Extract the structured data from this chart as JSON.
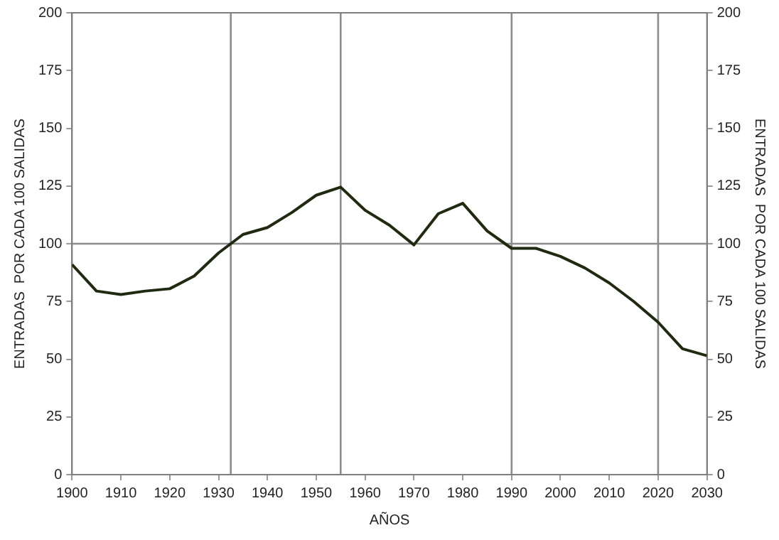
{
  "chart_data": {
    "type": "line",
    "xlabel": "AÑOS",
    "ylabel": "ENTRADAS  POR CADA 100 SALIDAS",
    "y2label": "ENTRADAS  POR CADA 100 SALIDAS",
    "x": [
      1900,
      1905,
      1910,
      1915,
      1920,
      1925,
      1930,
      1935,
      1940,
      1945,
      1950,
      1955,
      1960,
      1965,
      1970,
      1975,
      1980,
      1985,
      1990,
      1995,
      2000,
      2005,
      2010,
      2015,
      2020,
      2025,
      2030
    ],
    "series": [
      {
        "color": "#1f2a10",
        "values": [
          91,
          79.5,
          78,
          79.5,
          80.5,
          86,
          96,
          104,
          107,
          113.5,
          121,
          124.5,
          114.5,
          108,
          99.5,
          113,
          117.5,
          105.5,
          98,
          98,
          94.5,
          89.5,
          83,
          75,
          66,
          54.5,
          51.5
        ]
      }
    ],
    "xlim": [
      1900,
      2030
    ],
    "xticks": [
      1900,
      1910,
      1920,
      1930,
      1940,
      1950,
      1960,
      1970,
      1980,
      1990,
      2000,
      2010,
      2020,
      2030
    ],
    "ylim": [
      0,
      200
    ],
    "yticks": [
      0,
      25,
      50,
      75,
      100,
      125,
      150,
      175,
      200
    ],
    "y2lim": [
      0,
      200
    ],
    "y2ticks": [
      0,
      25,
      50,
      75,
      100,
      125,
      150,
      175,
      200
    ],
    "ref_lines": [
      {
        "axis": "x",
        "value": 1932.5,
        "color": "#8c8c8c"
      },
      {
        "axis": "x",
        "value": 1955,
        "color": "#8c8c8c"
      },
      {
        "axis": "x",
        "value": 1990,
        "color": "#8c8c8c"
      },
      {
        "axis": "x",
        "value": 2020,
        "color": "#8c8c8c"
      },
      {
        "axis": "y",
        "value": 100,
        "color": "#8c8c8c"
      }
    ],
    "grid": false,
    "legend": false,
    "marker": "none",
    "line_style": "solid"
  }
}
